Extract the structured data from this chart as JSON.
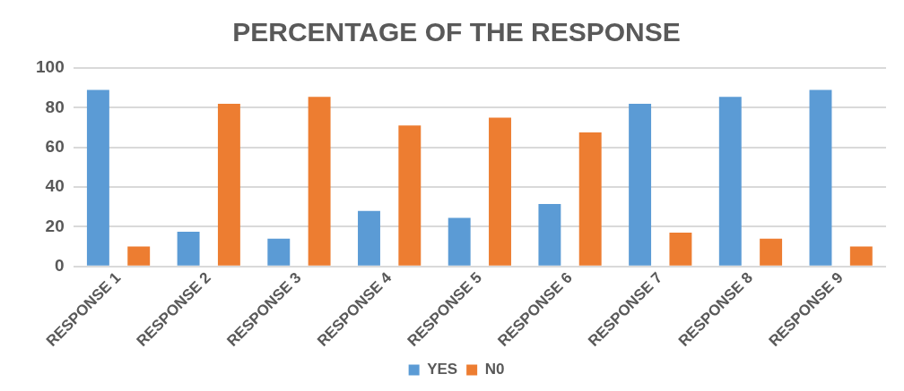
{
  "chart_data": {
    "type": "bar",
    "title": "PERCENTAGE OF THE RESPONSE",
    "categories": [
      "RESPONSE 1",
      "RESPONSE 2",
      "RESPONSE 3",
      "RESPONSE 4",
      "RESPONSE 5",
      "RESPONSE 6",
      "RESPONSE 7",
      "RESPONSE 8",
      "RESPONSE 9"
    ],
    "series": [
      {
        "name": "YES",
        "color": "#5b9bd5",
        "values": [
          89,
          17.5,
          14,
          28,
          24.5,
          31.5,
          82,
          85.5,
          89
        ]
      },
      {
        "name": "N0",
        "color": "#ed7d31",
        "values": [
          10,
          82,
          85.5,
          71,
          75,
          67.5,
          17,
          14,
          10
        ]
      }
    ],
    "ylim": [
      0,
      100
    ],
    "yticks": [
      0,
      20,
      40,
      60,
      80,
      100
    ],
    "grid": "y",
    "legend": "bottom"
  }
}
